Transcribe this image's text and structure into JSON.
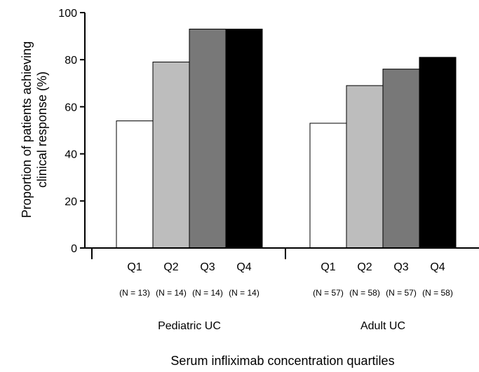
{
  "chart_data": {
    "type": "bar",
    "title": "",
    "ylabel_lines": [
      "Proportion of patients achieving",
      "clinical response (%)"
    ],
    "xlabel": "Serum infliximab concentration quartiles",
    "ylim": [
      0,
      100
    ],
    "yticks": [
      "0",
      "20",
      "40",
      "60",
      "80",
      "100"
    ],
    "grid": false,
    "quartile_colors": [
      "#ffffff",
      "#bdbdbd",
      "#787878",
      "#000000"
    ],
    "groups": [
      {
        "name": "Pediatric UC",
        "categories": [
          "Q1",
          "Q2",
          "Q3",
          "Q4"
        ],
        "n_labels": [
          "(N = 13)",
          "(N = 14)",
          "(N = 14)",
          "(N = 14)"
        ],
        "values": [
          54,
          79,
          93,
          93
        ]
      },
      {
        "name": "Adult UC",
        "categories": [
          "Q1",
          "Q2",
          "Q3",
          "Q4"
        ],
        "n_labels": [
          "(N = 57)",
          "(N = 58)",
          "(N = 57)",
          "(N = 58)"
        ],
        "values": [
          53,
          69,
          76,
          81
        ]
      }
    ]
  }
}
